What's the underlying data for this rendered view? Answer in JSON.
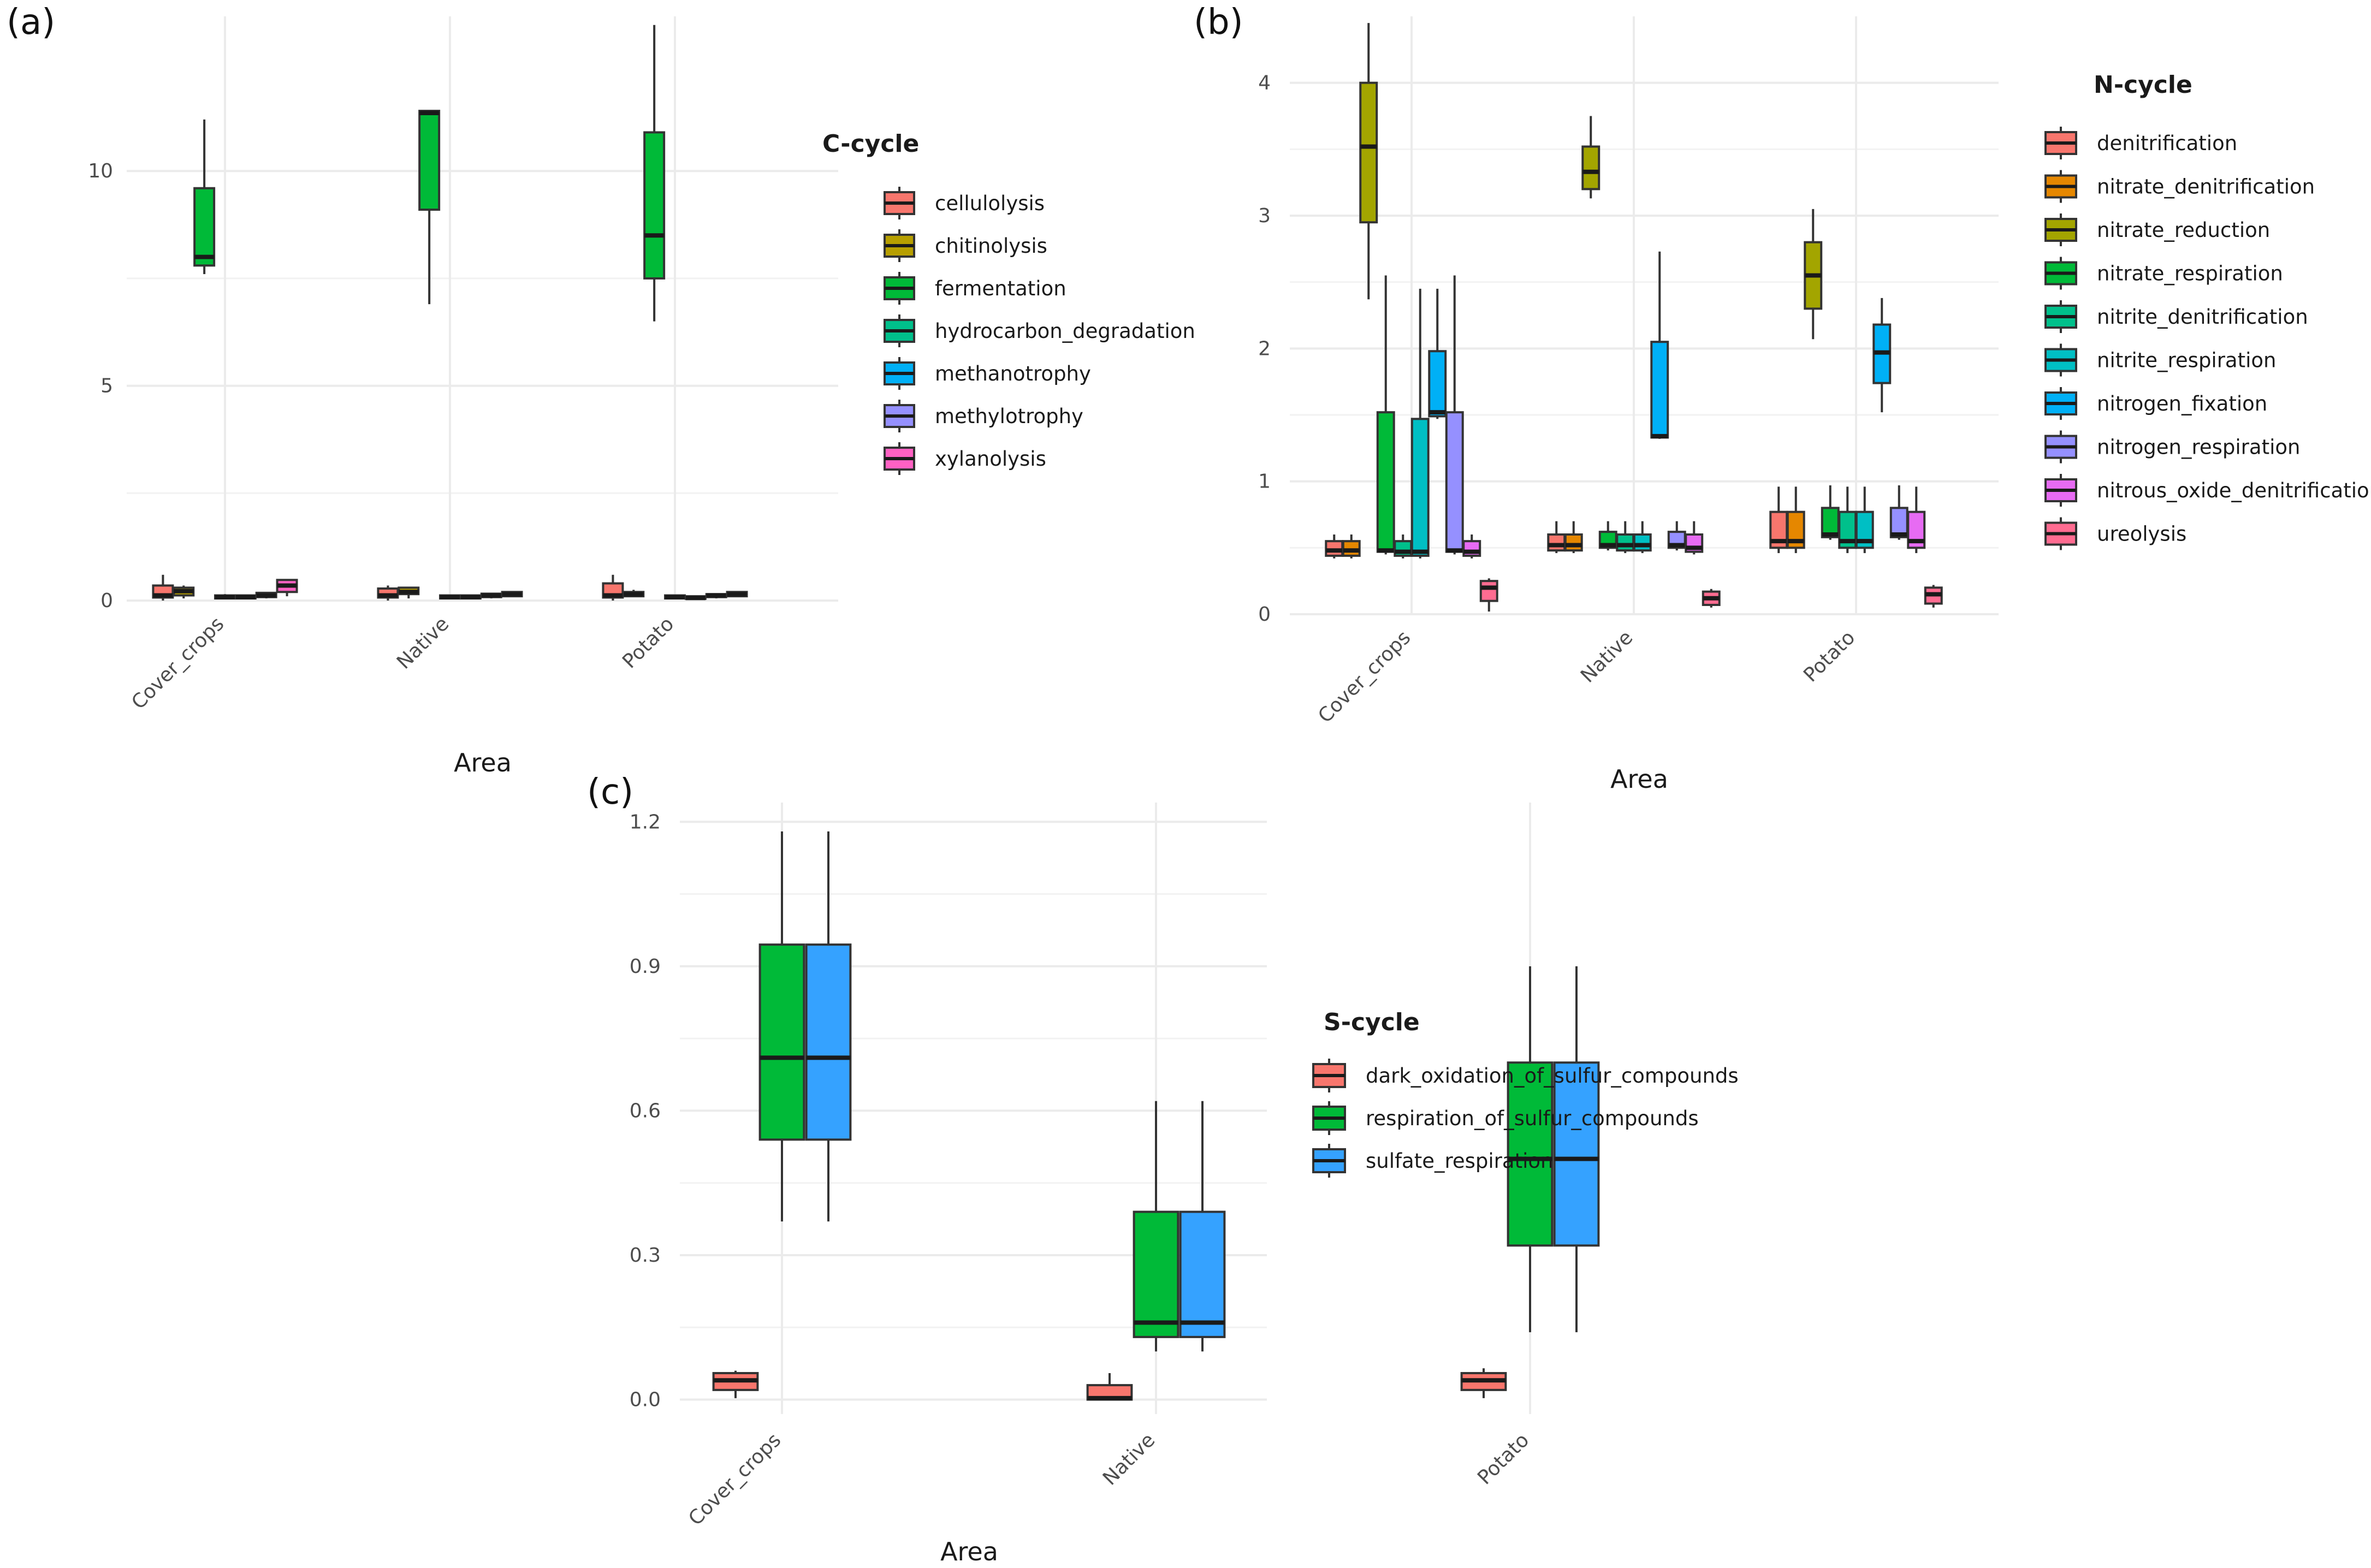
{
  "colors": {
    "salmon": "#F8766D",
    "orange": "#E58700",
    "gold": "#B79F00",
    "olive": "#A3A500",
    "green": "#00BA38",
    "teal": "#00C08B",
    "cyan": "#00BFC4",
    "blue": "#00B0F6",
    "sky": "#35A2FF",
    "purple": "#9590FF",
    "lavender": "#9590FF",
    "magenta": "#FF61C3",
    "violet": "#E76BF3",
    "pink": "#FF6C91"
  },
  "chart_data": [
    {
      "id": "a",
      "panel_label": "(a)",
      "type": "box",
      "xlabel": "Area",
      "ylabel": "",
      "ylim": [
        0,
        13.6
      ],
      "yticks": [
        0,
        5,
        10
      ],
      "tick_labels": [
        "0",
        "5",
        "10"
      ],
      "categories": [
        "Cover_crops",
        "Native",
        "Potato"
      ],
      "legend_title": "C-cycle",
      "series": [
        {
          "name": "cellulolysis",
          "color": "salmon",
          "boxes": [
            {
              "lo": 0.0,
              "q1": 0.07,
              "med": 0.12,
              "q3": 0.35,
              "hi": 0.6
            },
            {
              "lo": 0.0,
              "q1": 0.07,
              "med": 0.12,
              "q3": 0.28,
              "hi": 0.35
            },
            {
              "lo": 0.0,
              "q1": 0.07,
              "med": 0.12,
              "q3": 0.4,
              "hi": 0.6
            }
          ]
        },
        {
          "name": "chitinolysis",
          "color": "gold",
          "boxes": [
            {
              "lo": 0.05,
              "q1": 0.12,
              "med": 0.22,
              "q3": 0.3,
              "hi": 0.35
            },
            {
              "lo": 0.05,
              "q1": 0.15,
              "med": 0.2,
              "q3": 0.3,
              "hi": 0.32
            },
            {
              "lo": 0.08,
              "q1": 0.1,
              "med": 0.15,
              "q3": 0.2,
              "hi": 0.25
            }
          ]
        },
        {
          "name": "fermentation",
          "color": "green",
          "boxes": [
            {
              "lo": 7.6,
              "q1": 7.8,
              "med": 8.0,
              "q3": 9.6,
              "hi": 11.2
            },
            {
              "lo": 6.9,
              "q1": 9.1,
              "med": 11.35,
              "q3": 11.4,
              "hi": 11.4
            },
            {
              "lo": 6.5,
              "q1": 7.5,
              "med": 8.5,
              "q3": 10.9,
              "hi": 13.4
            }
          ]
        },
        {
          "name": "hydrocarbon_degradation",
          "color": "teal",
          "boxes": [
            {
              "lo": 0.03,
              "q1": 0.05,
              "med": 0.08,
              "q3": 0.12,
              "hi": 0.15
            },
            {
              "lo": 0.03,
              "q1": 0.05,
              "med": 0.08,
              "q3": 0.12,
              "hi": 0.14
            },
            {
              "lo": 0.03,
              "q1": 0.05,
              "med": 0.08,
              "q3": 0.12,
              "hi": 0.14
            }
          ]
        },
        {
          "name": "methanotrophy",
          "color": "blue",
          "boxes": [
            {
              "lo": 0.03,
              "q1": 0.05,
              "med": 0.08,
              "q3": 0.12,
              "hi": 0.14
            },
            {
              "lo": 0.03,
              "q1": 0.05,
              "med": 0.08,
              "q3": 0.12,
              "hi": 0.14
            },
            {
              "lo": 0.02,
              "q1": 0.04,
              "med": 0.06,
              "q3": 0.1,
              "hi": 0.12
            }
          ]
        },
        {
          "name": "methylotrophy",
          "color": "purple",
          "boxes": [
            {
              "lo": 0.05,
              "q1": 0.08,
              "med": 0.12,
              "q3": 0.18,
              "hi": 0.2
            },
            {
              "lo": 0.05,
              "q1": 0.08,
              "med": 0.12,
              "q3": 0.16,
              "hi": 0.18
            },
            {
              "lo": 0.05,
              "q1": 0.08,
              "med": 0.12,
              "q3": 0.15,
              "hi": 0.17
            }
          ]
        },
        {
          "name": "xylanolysis",
          "color": "magenta",
          "boxes": [
            {
              "lo": 0.1,
              "q1": 0.2,
              "med": 0.35,
              "q3": 0.48,
              "hi": 0.5
            },
            {
              "lo": 0.08,
              "q1": 0.1,
              "med": 0.15,
              "q3": 0.2,
              "hi": 0.22
            },
            {
              "lo": 0.08,
              "q1": 0.1,
              "med": 0.15,
              "q3": 0.2,
              "hi": 0.22
            }
          ]
        }
      ]
    },
    {
      "id": "b",
      "panel_label": "(b)",
      "type": "box",
      "xlabel": "Area",
      "ylabel": "",
      "ylim": [
        0,
        4.5
      ],
      "yticks": [
        0,
        1,
        2,
        3,
        4
      ],
      "tick_labels": [
        "0",
        "1",
        "2",
        "3",
        "4"
      ],
      "categories": [
        "Cover_crops",
        "Native",
        "Potato"
      ],
      "legend_title": "N-cycle",
      "series": [
        {
          "name": "denitrification",
          "color": "salmon",
          "boxes": [
            {
              "lo": 0.42,
              "q1": 0.44,
              "med": 0.48,
              "q3": 0.55,
              "hi": 0.6
            },
            {
              "lo": 0.46,
              "q1": 0.48,
              "med": 0.52,
              "q3": 0.6,
              "hi": 0.7
            },
            {
              "lo": 0.46,
              "q1": 0.5,
              "med": 0.55,
              "q3": 0.77,
              "hi": 0.96
            }
          ]
        },
        {
          "name": "nitrate_denitrification",
          "color": "orange",
          "boxes": [
            {
              "lo": 0.42,
              "q1": 0.44,
              "med": 0.48,
              "q3": 0.55,
              "hi": 0.6
            },
            {
              "lo": 0.46,
              "q1": 0.48,
              "med": 0.52,
              "q3": 0.6,
              "hi": 0.7
            },
            {
              "lo": 0.46,
              "q1": 0.5,
              "med": 0.55,
              "q3": 0.77,
              "hi": 0.96
            }
          ]
        },
        {
          "name": "nitrate_reduction",
          "color": "olive",
          "boxes": [
            {
              "lo": 2.37,
              "q1": 2.95,
              "med": 3.52,
              "q3": 4.0,
              "hi": 4.45
            },
            {
              "lo": 3.13,
              "q1": 3.2,
              "med": 3.33,
              "q3": 3.52,
              "hi": 3.75
            },
            {
              "lo": 2.07,
              "q1": 2.3,
              "med": 2.55,
              "q3": 2.8,
              "hi": 3.05
            }
          ]
        },
        {
          "name": "nitrate_respiration",
          "color": "green",
          "boxes": [
            {
              "lo": 0.45,
              "q1": 0.47,
              "med": 0.48,
              "q3": 1.52,
              "hi": 2.55
            },
            {
              "lo": 0.48,
              "q1": 0.5,
              "med": 0.52,
              "q3": 0.62,
              "hi": 0.7
            },
            {
              "lo": 0.56,
              "q1": 0.58,
              "med": 0.6,
              "q3": 0.8,
              "hi": 0.97
            }
          ]
        },
        {
          "name": "nitrite_denitrification",
          "color": "teal",
          "boxes": [
            {
              "lo": 0.42,
              "q1": 0.44,
              "med": 0.47,
              "q3": 0.55,
              "hi": 0.6
            },
            {
              "lo": 0.46,
              "q1": 0.48,
              "med": 0.52,
              "q3": 0.6,
              "hi": 0.7
            },
            {
              "lo": 0.46,
              "q1": 0.5,
              "med": 0.55,
              "q3": 0.77,
              "hi": 0.96
            }
          ]
        },
        {
          "name": "nitrite_respiration",
          "color": "cyan",
          "boxes": [
            {
              "lo": 0.42,
              "q1": 0.44,
              "med": 0.47,
              "q3": 1.47,
              "hi": 2.45
            },
            {
              "lo": 0.46,
              "q1": 0.48,
              "med": 0.52,
              "q3": 0.6,
              "hi": 0.7
            },
            {
              "lo": 0.46,
              "q1": 0.5,
              "med": 0.55,
              "q3": 0.77,
              "hi": 0.96
            }
          ]
        },
        {
          "name": "nitrogen_fixation",
          "color": "blue",
          "boxes": [
            {
              "lo": 1.47,
              "q1": 1.49,
              "med": 1.52,
              "q3": 1.98,
              "hi": 2.45
            },
            {
              "lo": 1.32,
              "q1": 1.33,
              "med": 1.34,
              "q3": 2.05,
              "hi": 2.73
            },
            {
              "lo": 1.52,
              "q1": 1.74,
              "med": 1.97,
              "q3": 2.18,
              "hi": 2.38
            }
          ]
        },
        {
          "name": "nitrogen_respiration",
          "color": "lavender",
          "boxes": [
            {
              "lo": 0.45,
              "q1": 0.47,
              "med": 0.48,
              "q3": 1.52,
              "hi": 2.55
            },
            {
              "lo": 0.48,
              "q1": 0.5,
              "med": 0.52,
              "q3": 0.62,
              "hi": 0.7
            },
            {
              "lo": 0.56,
              "q1": 0.58,
              "med": 0.6,
              "q3": 0.8,
              "hi": 0.97
            }
          ]
        },
        {
          "name": "nitrous_oxide_denitrification",
          "color": "violet",
          "boxes": [
            {
              "lo": 0.42,
              "q1": 0.44,
              "med": 0.47,
              "q3": 0.55,
              "hi": 0.6
            },
            {
              "lo": 0.45,
              "q1": 0.47,
              "med": 0.5,
              "q3": 0.6,
              "hi": 0.7
            },
            {
              "lo": 0.46,
              "q1": 0.5,
              "med": 0.55,
              "q3": 0.77,
              "hi": 0.96
            }
          ]
        },
        {
          "name": "ureolysis",
          "color": "pink",
          "boxes": [
            {
              "lo": 0.02,
              "q1": 0.1,
              "med": 0.2,
              "q3": 0.25,
              "hi": 0.27
            },
            {
              "lo": 0.05,
              "q1": 0.07,
              "med": 0.12,
              "q3": 0.17,
              "hi": 0.19
            },
            {
              "lo": 0.05,
              "q1": 0.08,
              "med": 0.15,
              "q3": 0.2,
              "hi": 0.22
            }
          ]
        }
      ]
    },
    {
      "id": "c",
      "panel_label": "(c)",
      "type": "box",
      "xlabel": "Area",
      "ylabel": "",
      "ylim": [
        -0.03,
        1.24
      ],
      "yticks": [
        0.0,
        0.3,
        0.6,
        0.9,
        1.2
      ],
      "tick_labels": [
        "0.0",
        "0.3",
        "0.6",
        "0.9",
        "1.2"
      ],
      "categories": [
        "Cover_crops",
        "Native",
        "Potato"
      ],
      "legend_title": "S-cycle",
      "series": [
        {
          "name": "dark_oxidation_of_sulfur_compounds",
          "color": "salmon",
          "boxes": [
            {
              "lo": 0.003,
              "q1": 0.02,
              "med": 0.04,
              "q3": 0.055,
              "hi": 0.06
            },
            {
              "lo": 0.0,
              "q1": 0.0,
              "med": 0.003,
              "q3": 0.03,
              "hi": 0.055
            },
            {
              "lo": 0.003,
              "q1": 0.02,
              "med": 0.04,
              "q3": 0.055,
              "hi": 0.065
            }
          ]
        },
        {
          "name": "respiration_of_sulfur_compounds",
          "color": "green",
          "boxes": [
            {
              "lo": 0.37,
              "q1": 0.54,
              "med": 0.71,
              "q3": 0.945,
              "hi": 1.18
            },
            {
              "lo": 0.1,
              "q1": 0.13,
              "med": 0.16,
              "q3": 0.39,
              "hi": 0.62
            },
            {
              "lo": 0.14,
              "q1": 0.32,
              "med": 0.5,
              "q3": 0.7,
              "hi": 0.9
            }
          ]
        },
        {
          "name": "sulfate_respiration",
          "color": "sky",
          "boxes": [
            {
              "lo": 0.37,
              "q1": 0.54,
              "med": 0.71,
              "q3": 0.945,
              "hi": 1.18
            },
            {
              "lo": 0.1,
              "q1": 0.13,
              "med": 0.16,
              "q3": 0.39,
              "hi": 0.62
            },
            {
              "lo": 0.14,
              "q1": 0.32,
              "med": 0.5,
              "q3": 0.7,
              "hi": 0.9
            }
          ]
        }
      ]
    }
  ]
}
